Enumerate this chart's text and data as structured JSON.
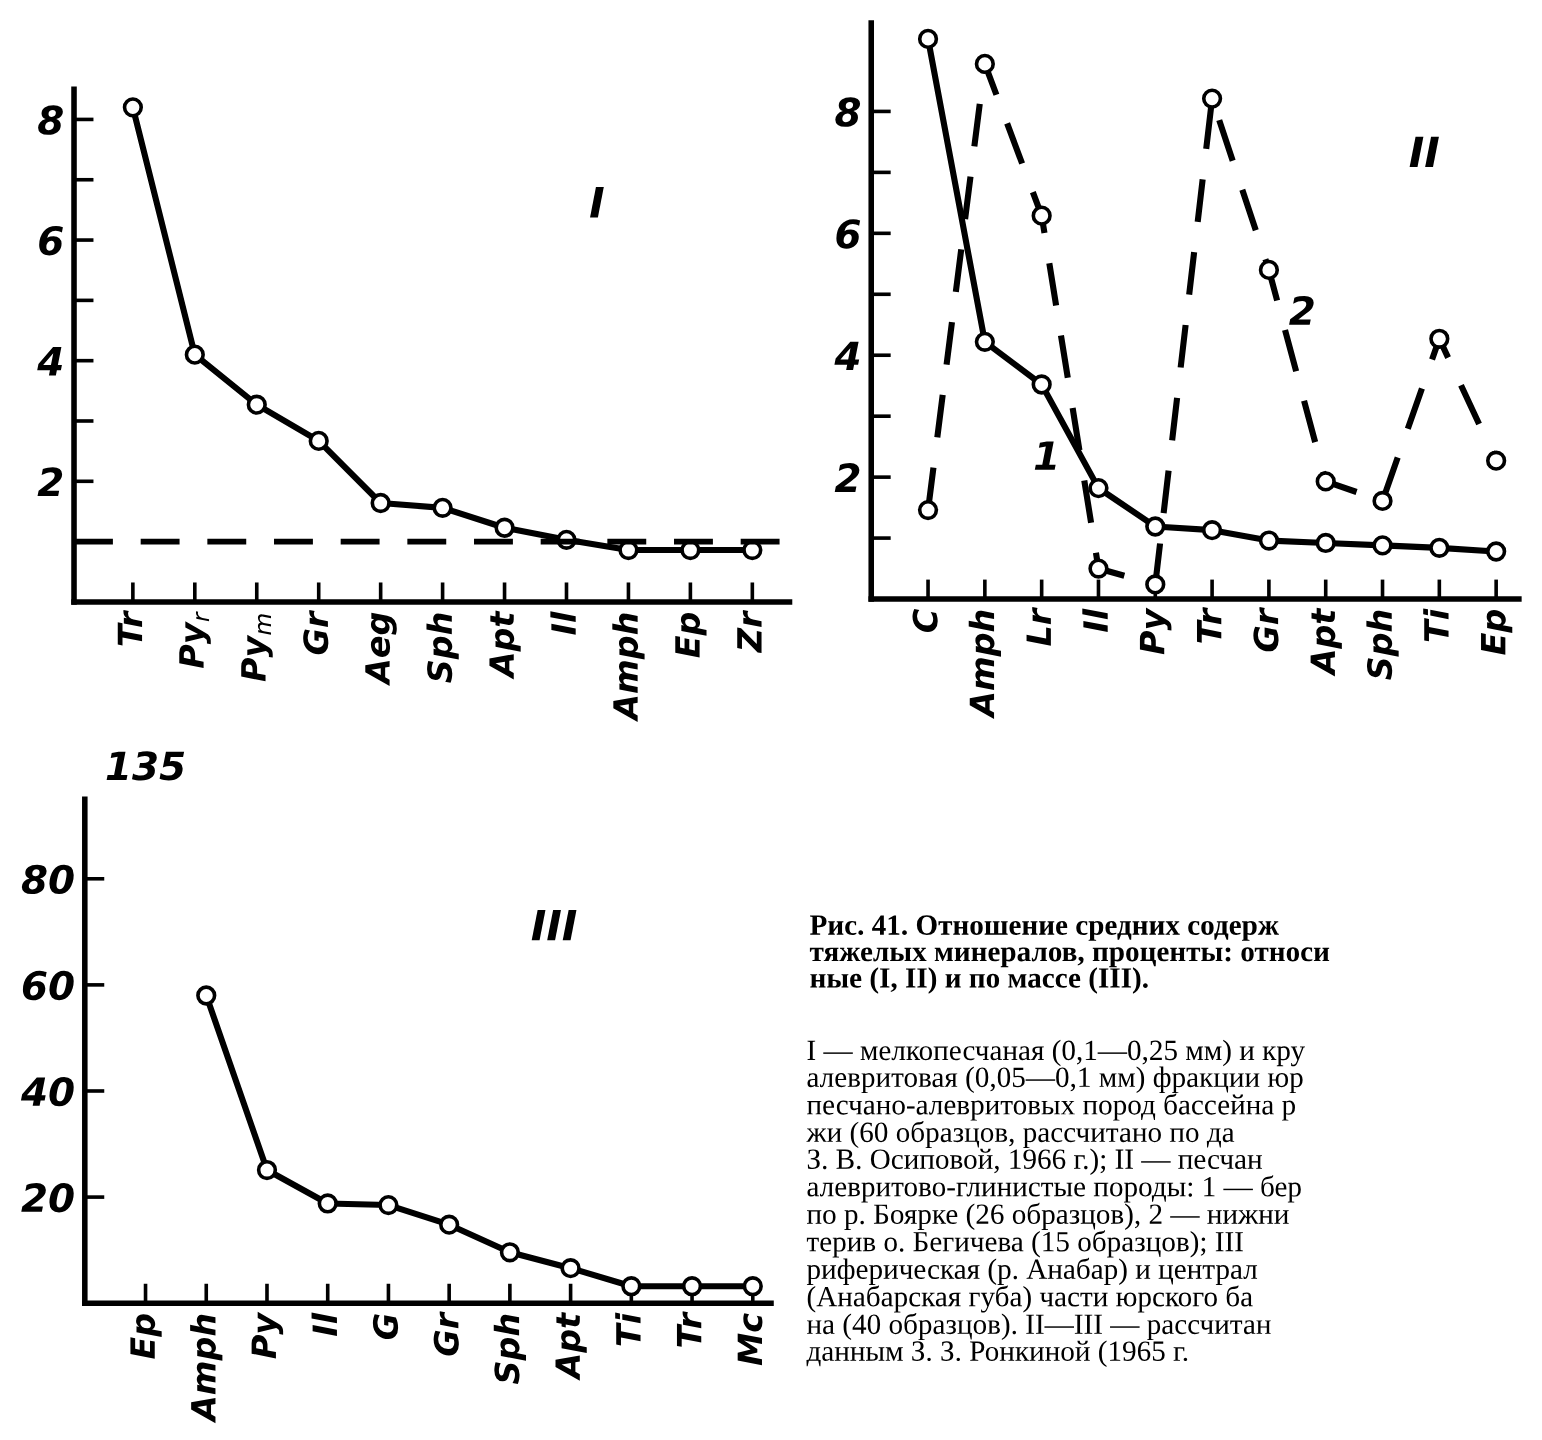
{
  "chart_data": [
    {
      "type": "line",
      "categories": [
        "Tr",
        "Py$_{r}$",
        "Py$_{m}$",
        "Gr",
        "Aeg",
        "Sph",
        "Apt",
        "Il",
        "Amph",
        "Ep",
        "Zr"
      ],
      "values": [
        8.2,
        4.1,
        3.27,
        2.67,
        1.64,
        1.56,
        1.23,
        1.03,
        0.86,
        0.86,
        0.86
      ],
      "color": "#000000",
      "marker": "circle",
      "line_style": "solid",
      "ylim": [
        0,
        8.5
      ],
      "yticks": [
        {
          "value": 1,
          "label": null
        },
        2,
        {
          "value": 3,
          "label": null
        },
        4,
        {
          "value": 5,
          "label": null
        },
        6,
        {
          "value": 7,
          "label": null
        },
        8
      ],
      "ref_lines": [
        {
          "axis": "y",
          "value": 1,
          "color": "#000000",
          "line_style": "dashed"
        }
      ],
      "annotations": [
        "I"
      ],
      "grid": false,
      "legend": false
    },
    {
      "type": "line",
      "categories": [
        "C",
        "Amph",
        "Lr",
        "Il",
        "Py",
        "Tr",
        "Gr",
        "Apt",
        "Sph",
        "Ti",
        "Ep"
      ],
      "series": [
        {
          "name": "1",
          "color": "#000000",
          "line_style": "solid",
          "values": [
            9.19,
            4.22,
            3.52,
            1.82,
            1.19,
            1.13,
            0.96,
            0.92,
            0.88,
            0.84,
            0.78
          ]
        },
        {
          "name": "2",
          "color": "#000000",
          "line_style": "dashed",
          "values": [
            1.46,
            8.78,
            6.29,
            0.5,
            0.24,
            8.21,
            5.4,
            1.93,
            1.61,
            4.27,
            2.27
          ]
        }
      ],
      "marker": "circle",
      "ylim": [
        0,
        9.45
      ],
      "yticks": [
        {
          "value": 1,
          "label": null
        },
        2,
        {
          "value": 3,
          "label": null
        },
        4,
        {
          "value": 5,
          "label": null
        },
        6,
        {
          "value": 7,
          "label": null
        },
        8
      ],
      "annotations": [
        "II"
      ],
      "grid": false,
      "legend": false
    },
    {
      "type": "line",
      "categories": [
        "Ep",
        "Amph",
        "Py",
        "Il",
        "G",
        "Gr",
        "Sph",
        "Apt",
        "Ti",
        "Tr",
        "Mc"
      ],
      "values": [
        null,
        58,
        25.1,
        18.8,
        18.5,
        14.8,
        9.6,
        6.6,
        3.2,
        3.2,
        3.2
      ],
      "color": "#000000",
      "marker": "circle",
      "line_style": "solid",
      "ylim": [
        0,
        95
      ],
      "yticks": [
        20,
        40,
        60,
        80
      ],
      "annotations": [
        "III",
        "135"
      ],
      "grid": false,
      "legend": false
    },
    {
      "type": "other",
      "title": "Рис. 41. Отношение средних содерж\nтяжелых минералов, проценты: относи\nные (I, II) и по массе (III).",
      "annotations": [
        "I — мелкопесчаная (0,1—0,25 мм) и кру\nалевритовая (0,05—0,1 мм) фракции юр\nпесчано-алевритовых пород бассейна р\nжи (60 образцов, рассчитано по да\nЗ. В. Осиповой, 1966 г.); II — песчан\nалевритово-глинистые породы: 1 — бер\nпо р. Боярке (26 образцов), 2 — нижни\nтерив о. Бегичева (15 образцов); III\nриферическая (р. Анабар) и централ\n(Анабарская губа) части юрского ба\nна (40 образцов). II—III — рассчитан\nданным З. З. Ронкиной (1965 г."
      ]
    }
  ]
}
